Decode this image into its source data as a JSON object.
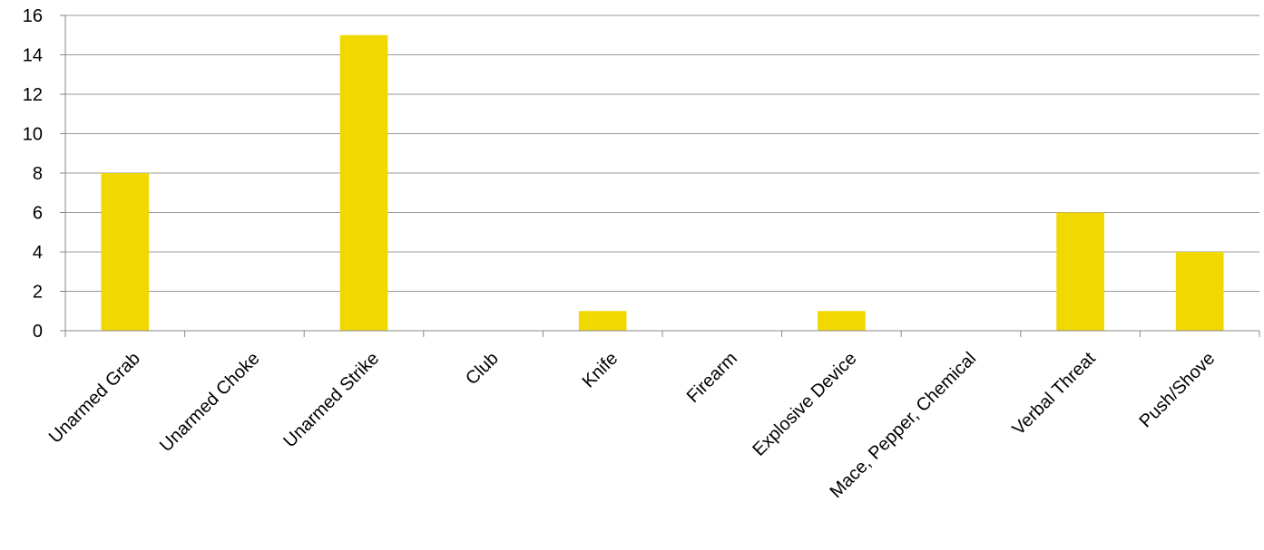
{
  "chart_data": {
    "type": "bar",
    "categories": [
      "Unarmed Grab",
      "Unarmed Choke",
      "Unarmed Strike",
      "Club",
      "Knife",
      "Firearm",
      "Explosive Device",
      "Mace, Pepper, Chemical",
      "Verbal Threat",
      "Push/Shove"
    ],
    "values": [
      8,
      0,
      15,
      0,
      1,
      0,
      1,
      0,
      6,
      4
    ],
    "title": "",
    "xlabel": "",
    "ylabel": "",
    "ylim": [
      0,
      16
    ],
    "yticks": [
      0,
      2,
      4,
      6,
      8,
      10,
      12,
      14,
      16
    ],
    "grid": true,
    "legend": "none",
    "bar_color": "#f0d800",
    "grid_color": "#999999"
  }
}
